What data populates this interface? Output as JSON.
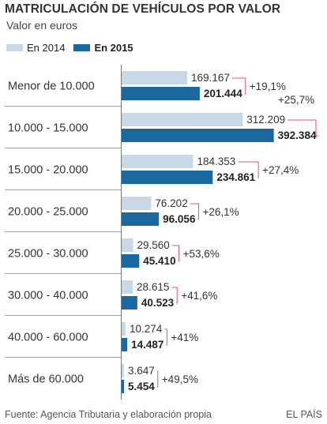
{
  "title": "MATRICULACIÓN DE VEHÍCULOS POR VALOR",
  "subtitle": "Valor en euros",
  "legend": {
    "series_2014": "En 2014",
    "series_2015": "En 2015"
  },
  "colors": {
    "y2014": "#c9d8e7",
    "y2015": "#1b689f",
    "change": "#e05a66",
    "divider": "#a0a0a0",
    "text": "#333333"
  },
  "chart_data": {
    "type": "bar",
    "orientation": "horizontal",
    "categories": [
      "Menor de 10.000",
      "10.000 - 15.000",
      "15.000 - 20.000",
      "20.000 - 25.000",
      "25.000 - 30.000",
      "30.000 - 40.000",
      "40.000 - 60.000",
      "Más de 60.000"
    ],
    "series": [
      {
        "name": "En 2014",
        "values": [
          169167,
          312209,
          184353,
          76202,
          29560,
          28615,
          10274,
          3647
        ],
        "labels": [
          "169.167",
          "312.209",
          "184.353",
          "76.202",
          "29.560",
          "28.615",
          "10.274",
          "3.647"
        ]
      },
      {
        "name": "En 2015",
        "values": [
          201444,
          392384,
          234861,
          96056,
          45410,
          40523,
          14487,
          5454
        ],
        "labels": [
          "201.444",
          "392.384",
          "234.861",
          "96.056",
          "45.410",
          "40.523",
          "14.487",
          "5.454"
        ]
      }
    ],
    "changes": [
      "+19,1%",
      "+25,7%",
      "+27,4%",
      "+26,1%",
      "+53,6%",
      "+41,6%",
      "+41%",
      "+49,5%"
    ]
  },
  "footer": {
    "source": "Fuente: Agencia Tributaria y elaboración propia",
    "brand": "EL PAÍS"
  }
}
